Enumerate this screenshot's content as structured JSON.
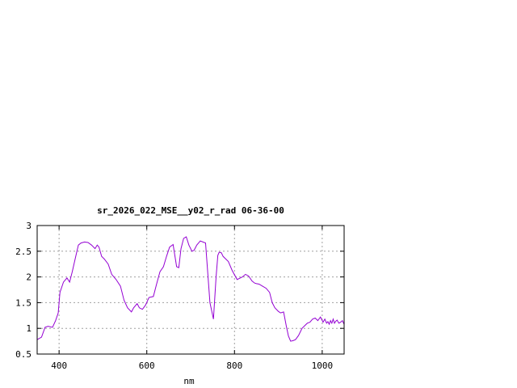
{
  "chart_data": {
    "type": "line",
    "title": "sr_2026_022_MSE__y02_r_rad 06-36-00",
    "xlabel": "nm",
    "ylabel": "",
    "xlim": [
      350,
      1050
    ],
    "ylim": [
      0.5,
      3
    ],
    "grid": true,
    "x_ticks": [
      400,
      600,
      800,
      1000
    ],
    "x_tick_labels": [
      "400",
      "600",
      "800",
      "1000"
    ],
    "y_ticks": [
      0.5,
      1,
      1.5,
      2,
      2.5,
      3
    ],
    "y_tick_labels": [
      "0.5",
      "1",
      "1.5",
      "2",
      "2.5",
      "3"
    ],
    "series": [
      {
        "color": "#9400d3",
        "x": [
          350,
          360,
          368,
          375,
          385,
          392,
          398,
          402,
          410,
          418,
          424,
          430,
          438,
          444,
          450,
          458,
          466,
          474,
          482,
          487,
          491,
          497,
          503,
          512,
          520,
          530,
          540,
          548,
          556,
          565,
          570,
          578,
          583,
          590,
          597,
          605,
          615,
          622,
          630,
          638,
          645,
          652,
          660,
          668,
          673,
          678,
          684,
          690,
          696,
          703,
          708,
          714,
          722,
          728,
          734,
          744,
          752,
          758,
          762,
          765,
          770,
          774,
          780,
          786,
          795,
          806,
          818,
          825,
          832,
          840,
          846,
          850,
          856,
          864,
          872,
          880,
          886,
          892,
          900,
          905,
          912,
          918,
          923,
          928,
          933,
          939,
          946,
          954,
          960,
          966,
          972,
          978,
          984,
          990,
          996,
          1002,
          1006,
          1010,
          1013,
          1016,
          1019,
          1022,
          1025,
          1028,
          1031,
          1034,
          1038,
          1042,
          1046,
          1050
        ],
        "y": [
          0.78,
          0.83,
          1.02,
          1.04,
          1.02,
          1.15,
          1.3,
          1.7,
          1.9,
          1.98,
          1.9,
          2.1,
          2.4,
          2.62,
          2.66,
          2.68,
          2.67,
          2.62,
          2.55,
          2.62,
          2.58,
          2.4,
          2.35,
          2.25,
          2.05,
          1.95,
          1.82,
          1.55,
          1.4,
          1.32,
          1.4,
          1.48,
          1.4,
          1.37,
          1.45,
          1.6,
          1.62,
          1.85,
          2.1,
          2.2,
          2.4,
          2.58,
          2.63,
          2.2,
          2.18,
          2.55,
          2.75,
          2.78,
          2.62,
          2.5,
          2.52,
          2.62,
          2.7,
          2.68,
          2.66,
          1.5,
          1.18,
          2.0,
          2.42,
          2.48,
          2.47,
          2.4,
          2.35,
          2.3,
          2.12,
          1.95,
          2.0,
          2.05,
          2.02,
          1.92,
          1.88,
          1.87,
          1.86,
          1.82,
          1.78,
          1.7,
          1.5,
          1.4,
          1.33,
          1.3,
          1.32,
          1.05,
          0.85,
          0.75,
          0.76,
          0.78,
          0.86,
          1.0,
          1.05,
          1.1,
          1.12,
          1.18,
          1.2,
          1.15,
          1.22,
          1.12,
          1.18,
          1.1,
          1.13,
          1.08,
          1.15,
          1.1,
          1.18,
          1.1,
          1.14,
          1.16,
          1.1,
          1.12,
          1.15,
          1.08
        ]
      }
    ]
  }
}
